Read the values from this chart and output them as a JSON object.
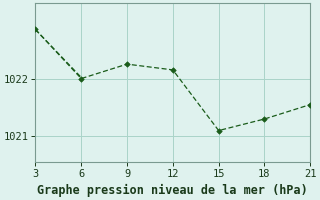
{
  "line1_x": [
    3,
    6,
    9,
    12,
    15,
    18,
    21
  ],
  "line1_y": [
    1022.85,
    1022.0,
    1022.25,
    1022.15,
    1021.1,
    1021.3,
    1021.55
  ],
  "line2_x": [
    3,
    6
  ],
  "line2_y": [
    1022.85,
    1022.02
  ],
  "line_color": "#1a5c1a",
  "marker_color": "#1a5c1a",
  "bg_color": "#dff2ee",
  "grid_color": "#aad4c8",
  "axis_color": "#7a9a90",
  "xlabel": "Graphe pression niveau de la mer (hPa)",
  "xticks": [
    3,
    6,
    9,
    12,
    15,
    18,
    21
  ],
  "yticks": [
    1021,
    1022
  ],
  "xlim": [
    3,
    21
  ],
  "ylim": [
    1020.55,
    1023.3
  ],
  "tick_fontsize": 7.5,
  "xlabel_fontsize": 8.5
}
